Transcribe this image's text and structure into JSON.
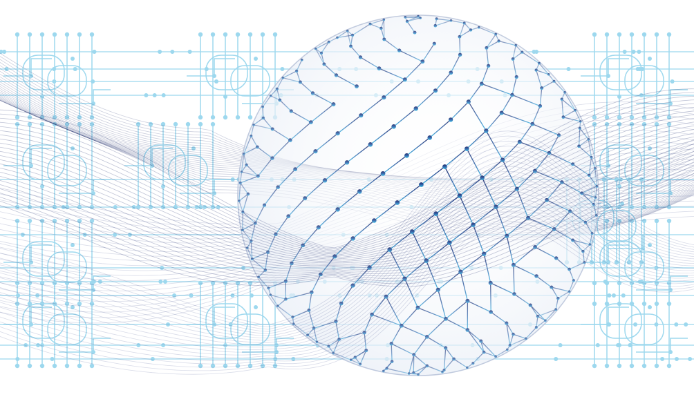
{
  "image": {
    "alt": "",
    "palette": {
      "background": "#ffffff",
      "circuit": "#9dd8ee",
      "wave_dark": "#1c2b6b",
      "wave_mid": "#3b4a8c",
      "sphere_top": "#1a2466",
      "sphere_bottom": "#2fb6e6"
    },
    "elements": {
      "circuit_pattern": "circuit-board-traces",
      "sphere": "geodesic-network-sphere",
      "waves": "flowing-mesh-ribbons"
    }
  }
}
